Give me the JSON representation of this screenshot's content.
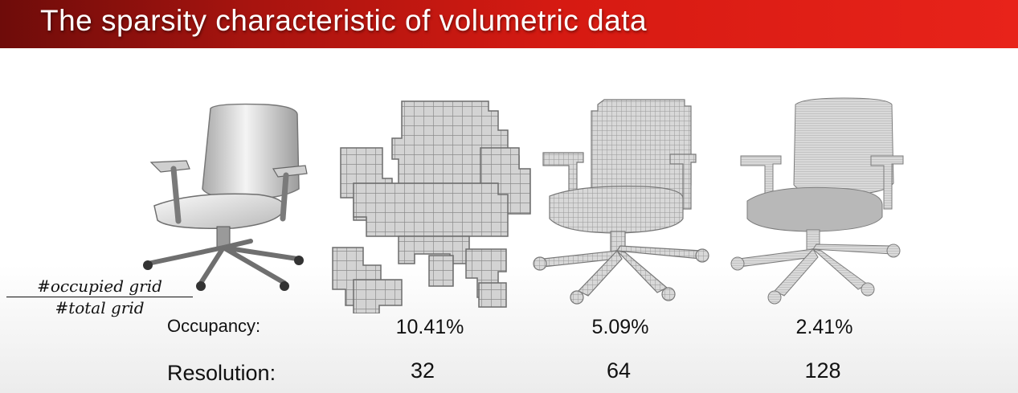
{
  "header": {
    "title": "The sparsity characteristic of volumetric data",
    "bar_color_start": "#6e0c0a",
    "bar_color_end": "#e8231a"
  },
  "formula": {
    "numerator": "#occupied grid",
    "denominator": "#total grid"
  },
  "table": {
    "occupancy_label": "Occupancy:",
    "resolution_label": "Resolution:",
    "columns": [
      {
        "occupancy": "10.41%",
        "resolution": "32"
      },
      {
        "occupancy": "5.09%",
        "resolution": "64"
      },
      {
        "occupancy": "2.41%",
        "resolution": "128"
      }
    ]
  },
  "images": [
    {
      "icon": "office-chair-mesh-image"
    },
    {
      "icon": "voxel-chair-res-32-image"
    },
    {
      "icon": "voxel-chair-res-64-image"
    },
    {
      "icon": "voxel-chair-res-128-image"
    }
  ]
}
